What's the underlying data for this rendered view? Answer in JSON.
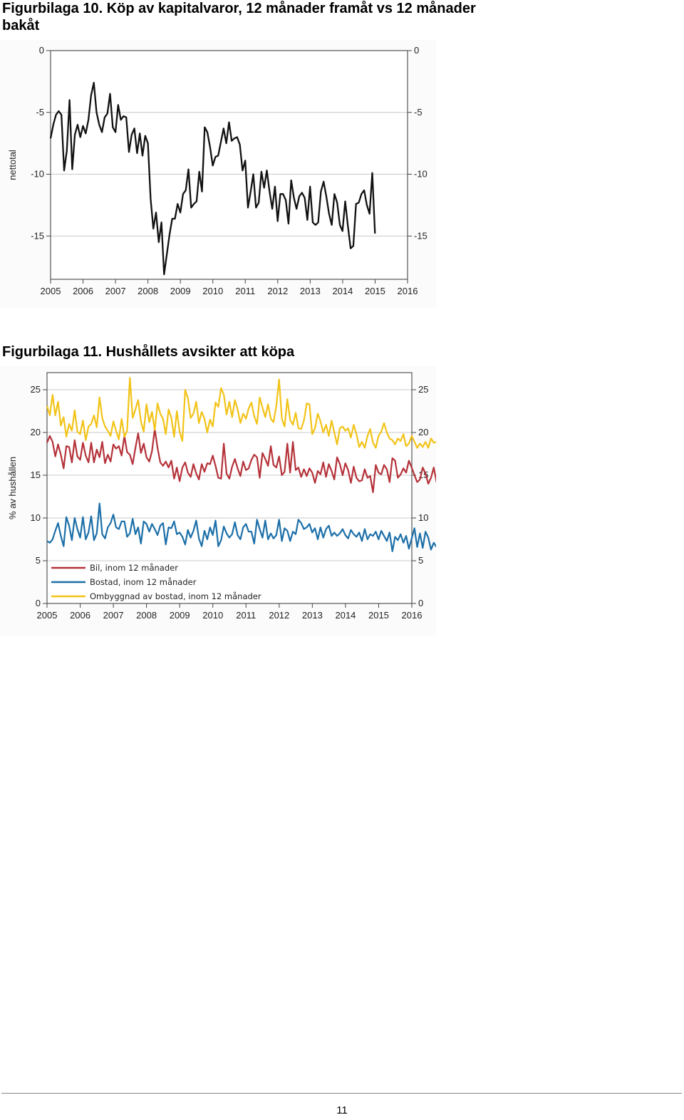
{
  "figures": [
    {
      "title": "Figurbilaga 10. Köp av kapitalvaror, 12 månader framåt vs 12 månader bakåt"
    },
    {
      "title": "Figurbilaga 11. Hushållets avsikter att köpa"
    }
  ],
  "page_number": "11",
  "chart_data": [
    {
      "type": "line",
      "title": "Figurbilaga 10. Köp av kapitalvaror, 12 månader framåt vs 12 månader bakåt",
      "ylabel": "nettotal",
      "xlabel": "",
      "ylim": [
        -18.5,
        0
      ],
      "yticks": [
        0,
        -5,
        -10,
        -15
      ],
      "ytick_labels": [
        "0",
        "-5",
        "-10",
        "-15"
      ],
      "x_start": 2005.0,
      "x_step": 0.0833,
      "xlim": [
        2005,
        2016
      ],
      "xticks": [
        "2005",
        "2006",
        "2007",
        "2008",
        "2009",
        "2010",
        "2011",
        "2012",
        "2013",
        "2014",
        "2015",
        "2016"
      ],
      "grid": true,
      "colors": {
        "line": "#111111",
        "grid": "#c8c8c8",
        "frame": "#555555"
      },
      "series": [
        {
          "values": [
            -7.1,
            -6.0,
            -5.2,
            -4.9,
            -5.2,
            -9.7,
            -8.1,
            -4.0,
            -9.6,
            -6.8,
            -6.0,
            -7.0,
            -6.1,
            -6.7,
            -5.6,
            -3.6,
            -2.6,
            -5.0,
            -6.0,
            -6.6,
            -5.4,
            -5.1,
            -3.5,
            -6.2,
            -6.6,
            -4.4,
            -5.6,
            -5.3,
            -5.4,
            -8.2,
            -6.8,
            -6.3,
            -8.3,
            -6.7,
            -8.5,
            -6.9,
            -7.5,
            -12.0,
            -14.4,
            -13.1,
            -15.5,
            -13.9,
            -18.1,
            -16.5,
            -14.9,
            -13.6,
            -13.6,
            -12.4,
            -13.1,
            -11.6,
            -11.3,
            -9.6,
            -12.7,
            -12.4,
            -12.2,
            -9.8,
            -11.4,
            -6.2,
            -6.6,
            -7.8,
            -9.3,
            -8.6,
            -8.5,
            -7.4,
            -6.3,
            -7.5,
            -5.8,
            -7.3,
            -7.1,
            -7.0,
            -7.6,
            -9.7,
            -8.9,
            -12.7,
            -11.4,
            -10.0,
            -12.7,
            -12.3,
            -9.8,
            -11.1,
            -9.7,
            -11.4,
            -12.8,
            -11.0,
            -13.8,
            -11.6,
            -11.6,
            -12.1,
            -14.0,
            -10.5,
            -11.9,
            -12.8,
            -11.8,
            -11.5,
            -11.9,
            -13.7,
            -11.0,
            -13.9,
            -14.1,
            -13.9,
            -11.4,
            -10.6,
            -11.8,
            -13.2,
            -14.1,
            -11.6,
            -12.3,
            -14.1,
            -14.6,
            -12.2,
            -14.2,
            -16.0,
            -15.8,
            -12.4,
            -12.3,
            -11.6,
            -11.3,
            -12.5,
            -13.2,
            -9.9,
            -14.8
          ]
        }
      ]
    },
    {
      "type": "line",
      "title": "Figurbilaga 11. Hushållets avsikter att köpa",
      "ylabel": "% av hushållen",
      "xlabel": "",
      "ylim": [
        0,
        27
      ],
      "yticks": [
        0,
        5,
        10,
        15,
        20,
        25
      ],
      "ytick_labels": [
        "0",
        "5",
        "10",
        "15",
        "20",
        "25"
      ],
      "x_start": 2005.0,
      "x_step": 0.0833,
      "xlim": [
        2005,
        2016
      ],
      "xticks": [
        "2005",
        "2006",
        "2007",
        "2008",
        "2009",
        "2010",
        "2011",
        "2012",
        "2013",
        "2014",
        "2015",
        "2016"
      ],
      "grid": true,
      "legend_position": "bottom-left",
      "colors": {
        "grid": "#c8c8c8",
        "frame": "#555555"
      },
      "series": [
        {
          "name": "Bil, inom 12 månader",
          "color": "#b5323a",
          "values": [
            18.8,
            19.6,
            18.9,
            17.2,
            18.6,
            17.4,
            15.8,
            18.4,
            18.3,
            16.5,
            19.1,
            17.2,
            16.8,
            18.8,
            17.3,
            16.5,
            18.8,
            16.5,
            18.0,
            17.1,
            18.9,
            16.4,
            17.4,
            16.6,
            18.6,
            18.1,
            18.4,
            17.3,
            19.6,
            17.7,
            17.4,
            16.3,
            18.2,
            19.9,
            17.6,
            18.7,
            17.1,
            16.6,
            17.8,
            20.4,
            18.2,
            16.5,
            16.1,
            16.6,
            15.9,
            16.7,
            14.6,
            15.9,
            14.3,
            15.9,
            16.5,
            15.3,
            14.8,
            16.3,
            15.2,
            14.5,
            16.3,
            15.4,
            16.4,
            16.3,
            17.3,
            16.1,
            14.7,
            14.6,
            18.7,
            15.2,
            14.6,
            16.0,
            16.9,
            15.8,
            14.9,
            16.6,
            15.6,
            15.8,
            16.8,
            17.4,
            17.1,
            14.7,
            17.6,
            16.9,
            16.1,
            18.4,
            16.2,
            15.9,
            17.2,
            15.0,
            15.4,
            18.7,
            15.3,
            18.9,
            15.6,
            15.9,
            14.8,
            15.7,
            14.9,
            15.8,
            15.3,
            14.1,
            15.5,
            15.1,
            16.5,
            14.8,
            16.3,
            15.5,
            14.5,
            17.1,
            16.3,
            15.0,
            16.4,
            15.6,
            14.1,
            16.0,
            14.7,
            14.3,
            14.4,
            15.7,
            14.7,
            14.9,
            13.0,
            16.2,
            15.3,
            15.1,
            16.2,
            15.7,
            14.2,
            17.0,
            16.7,
            14.7,
            15.1,
            15.8,
            15.3,
            16.7,
            15.9,
            15.0,
            14.2,
            14.5,
            15.9,
            15.2,
            14.0,
            14.7,
            15.9,
            14.2,
            13.4,
            14.6,
            15.6,
            14.3,
            15.0,
            16.3,
            16.0,
            17.0,
            16.6,
            17.8,
            15.2,
            15.4,
            14.7,
            17.4,
            16.9,
            18.4,
            16.8,
            17.3,
            16.5,
            15.4,
            19.1,
            16.4,
            15.4,
            17.1,
            17.0,
            16.0,
            19.1
          ]
        },
        {
          "name": "Bostad, inom 12 månader",
          "color": "#1c6fa8",
          "values": [
            7.3,
            7.1,
            7.5,
            8.5,
            9.4,
            7.9,
            6.7,
            10.1,
            9.1,
            7.4,
            10.0,
            8.7,
            7.7,
            10.1,
            7.5,
            8.3,
            10.2,
            7.4,
            8.2,
            11.7,
            8.1,
            7.6,
            8.9,
            9.4,
            10.4,
            8.9,
            8.7,
            9.6,
            9.6,
            7.8,
            8.2,
            9.9,
            8.1,
            8.9,
            7.0,
            9.6,
            9.3,
            8.4,
            9.3,
            8.7,
            8.0,
            9.1,
            9.4,
            6.9,
            8.9,
            8.8,
            9.6,
            8.1,
            8.3,
            7.8,
            6.9,
            8.6,
            7.7,
            8.5,
            9.7,
            7.6,
            6.7,
            8.5,
            7.5,
            8.9,
            8.0,
            9.7,
            6.7,
            7.4,
            9.0,
            8.2,
            7.7,
            8.1,
            9.5,
            8.0,
            7.5,
            8.9,
            9.3,
            8.4,
            8.4,
            7.0,
            9.8,
            8.7,
            7.7,
            9.7,
            7.5,
            8.2,
            7.6,
            8.0,
            9.8,
            7.3,
            8.8,
            8.5,
            7.3,
            8.4,
            8.1,
            9.8,
            9.4,
            8.7,
            8.9,
            9.3,
            8.3,
            8.8,
            7.5,
            8.9,
            7.7,
            8.7,
            9.1,
            7.9,
            8.3,
            7.9,
            8.2,
            8.7,
            8.0,
            7.6,
            8.6,
            8.1,
            7.8,
            8.3,
            7.3,
            8.7,
            7.5,
            8.1,
            7.9,
            8.4,
            7.5,
            8.5,
            7.9,
            7.3,
            8.3,
            6.1,
            7.8,
            7.4,
            8.1,
            7.1,
            7.9,
            6.4,
            7.6,
            8.8,
            6.6,
            8.2,
            6.5,
            8.4,
            7.7,
            6.3,
            7.1,
            6.6,
            7.0,
            6.4,
            8.1,
            6.1,
            7.2,
            6.9,
            6.3,
            7.5,
            5.9,
            6.5,
            6.1,
            7.3,
            5.4,
            5.8,
            5.4,
            7.0,
            6.0,
            4.8,
            6.8,
            6.4,
            4.9,
            7.1,
            5.7,
            6.2,
            4.9,
            6.6,
            6.8,
            6.9,
            7.0
          ]
        },
        {
          "name": "Ombyggnad av bostad, inom 12 månader",
          "color": "#f2c318",
          "values": [
            23.1,
            22.0,
            24.4,
            22.0,
            23.6,
            20.8,
            21.8,
            19.5,
            21.0,
            20.2,
            22.6,
            20.1,
            19.8,
            21.4,
            19.1,
            20.7,
            21.0,
            22.0,
            20.6,
            24.1,
            21.7,
            20.7,
            20.2,
            19.6,
            21.3,
            20.2,
            19.2,
            21.6,
            19.5,
            20.2,
            26.4,
            21.7,
            22.7,
            23.8,
            21.3,
            20.1,
            23.3,
            21.2,
            22.4,
            20.3,
            23.4,
            22.2,
            21.6,
            19.8,
            22.7,
            21.7,
            19.5,
            22.5,
            20.1,
            19.0,
            25.0,
            24.0,
            21.7,
            22.2,
            23.6,
            21.1,
            22.4,
            21.6,
            20.0,
            21.5,
            20.7,
            23.5,
            23.0,
            25.2,
            24.4,
            22.1,
            23.6,
            21.8,
            23.8,
            22.7,
            21.1,
            22.2,
            21.6,
            22.8,
            23.5,
            21.9,
            21.0,
            24.1,
            22.9,
            21.8,
            23.3,
            21.6,
            21.2,
            23.1,
            26.2,
            21.6,
            20.7,
            23.9,
            21.5,
            20.9,
            22.3,
            20.5,
            20.4,
            21.4,
            23.4,
            23.3,
            19.8,
            20.5,
            22.2,
            21.3,
            20.0,
            20.9,
            19.6,
            21.4,
            20.0,
            18.6,
            20.5,
            20.7,
            20.2,
            20.5,
            19.4,
            20.9,
            19.8,
            18.3,
            18.9,
            18.2,
            19.6,
            20.4,
            18.8,
            18.2,
            19.6,
            20.1,
            21.1,
            20.0,
            19.3,
            19.1,
            18.6,
            19.3,
            19.0,
            19.8,
            18.4,
            18.7,
            19.6,
            18.9,
            18.2,
            18.7,
            18.3,
            18.9,
            18.2,
            19.3,
            18.8,
            18.9,
            19.1,
            18.9,
            18.4,
            19.0,
            20.8,
            20.1,
            19.5,
            20.2,
            18.3,
            18.8,
            19.7,
            18.2,
            19.3,
            18.6,
            18.9,
            19.2,
            18.7,
            20.1,
            22.9,
            19.6,
            20.4,
            19.2,
            19.9,
            18.8
          ]
        }
      ]
    }
  ]
}
